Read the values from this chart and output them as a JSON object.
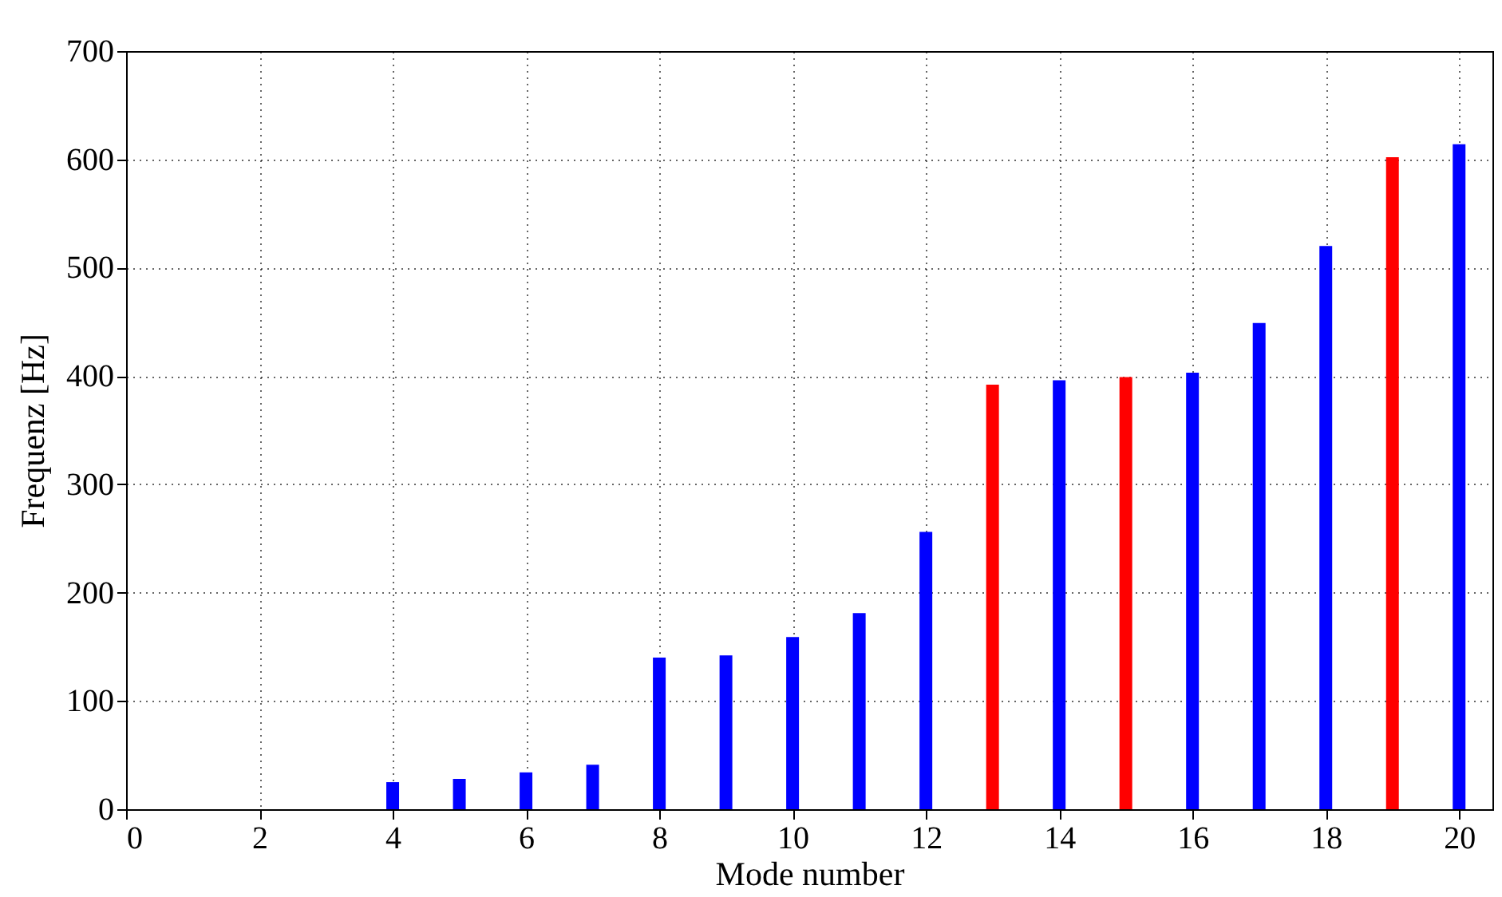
{
  "chart_data": {
    "type": "bar",
    "xlabel": "Mode number",
    "ylabel": "Frequenz [Hz]",
    "x": [
      4,
      5,
      6,
      7,
      8,
      9,
      10,
      11,
      12,
      13,
      14,
      15,
      16,
      17,
      18,
      19,
      20
    ],
    "values": [
      25,
      28,
      34,
      41,
      140,
      142,
      159,
      181,
      256,
      392,
      396,
      399,
      403,
      449,
      520,
      602,
      614
    ],
    "colors": [
      "#0000ff",
      "#0000ff",
      "#0000ff",
      "#0000ff",
      "#0000ff",
      "#0000ff",
      "#0000ff",
      "#0000ff",
      "#0000ff",
      "#ff0000",
      "#0000ff",
      "#ff0000",
      "#0000ff",
      "#0000ff",
      "#0000ff",
      "#ff0000",
      "#0000ff"
    ],
    "xlim": [
      0,
      20.5
    ],
    "ylim": [
      0,
      700
    ],
    "xticks": [
      0,
      2,
      4,
      6,
      8,
      10,
      12,
      14,
      16,
      18,
      20
    ],
    "yticks": [
      0,
      100,
      200,
      300,
      400,
      500,
      600,
      700
    ],
    "grid": true
  }
}
